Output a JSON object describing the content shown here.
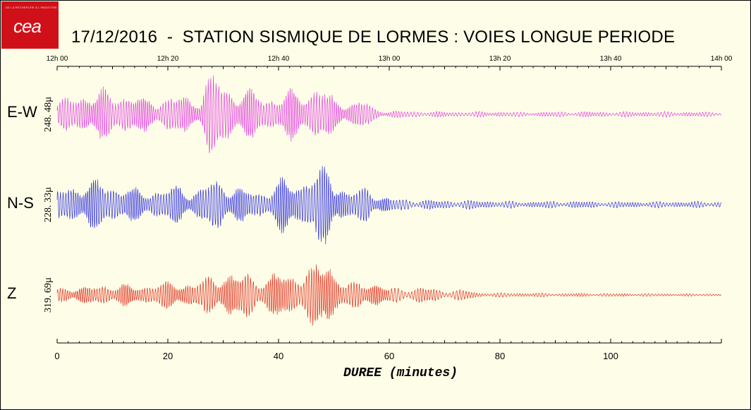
{
  "logo": {
    "text": "cea",
    "tagline": "DE LA RECHERCHE À L'INDUSTRIE"
  },
  "title": "17/12/2016  -  STATION SISMIQUE DE LORMES : VOIES LONGUE PERIODE",
  "colors": {
    "background": "#fefee8",
    "logo_red": "#d01018",
    "ew": "#e040e0",
    "ns": "#3030e0",
    "z": "#e03020"
  },
  "chart_data": {
    "type": "line",
    "top_axis": {
      "ticks": [
        "12h 00",
        "12h 20",
        "12h 40",
        "13h 00",
        "13h 20",
        "13h 40",
        "14h 00"
      ],
      "tick_minutes": [
        0,
        20,
        40,
        60,
        80,
        100,
        120
      ]
    },
    "bottom_axis": {
      "ticks": [
        "0",
        "20",
        "40",
        "60",
        "80",
        "100"
      ],
      "tick_values": [
        0,
        20,
        40,
        60,
        80,
        100
      ],
      "xlim": [
        0,
        120
      ]
    },
    "xlabel": "DUREE (minutes)",
    "series": [
      {
        "name": "E-W",
        "scale": "248. 48µ",
        "color": "#e040e0",
        "envelope": {
          "minutes": [
            0,
            2,
            4,
            6,
            8,
            10,
            12,
            14,
            16,
            18,
            20,
            22,
            24,
            26,
            27,
            28,
            29,
            30,
            32,
            34,
            36,
            38,
            40,
            42,
            44,
            46,
            47,
            48,
            50,
            52,
            54,
            55,
            56,
            57,
            58,
            60,
            65,
            70,
            75,
            80,
            85,
            90,
            100,
            110,
            120
          ],
          "amplitude": [
            0.25,
            0.4,
            0.45,
            0.5,
            0.55,
            0.5,
            0.5,
            0.45,
            0.35,
            0.35,
            0.4,
            0.45,
            0.35,
            0.45,
            0.8,
            1.0,
            0.95,
            0.7,
            0.6,
            0.6,
            0.5,
            0.4,
            0.45,
            0.55,
            0.5,
            0.55,
            0.75,
            0.65,
            0.35,
            0.3,
            0.3,
            0.35,
            0.3,
            0.15,
            0.1,
            0.08,
            0.07,
            0.06,
            0.06,
            0.06,
            0.05,
            0.06,
            0.06,
            0.06,
            0.05
          ]
        }
      },
      {
        "name": "N-S",
        "scale": "228. 33µ",
        "color": "#3030e0",
        "envelope": {
          "minutes": [
            0,
            2,
            4,
            6,
            8,
            10,
            12,
            14,
            16,
            18,
            20,
            22,
            24,
            26,
            28,
            30,
            32,
            34,
            36,
            38,
            40,
            42,
            44,
            45,
            46,
            48,
            49,
            50,
            52,
            54,
            56,
            58,
            60,
            64,
            68,
            72,
            76,
            80,
            85,
            90,
            100,
            110,
            120
          ],
          "amplitude": [
            0.35,
            0.4,
            0.5,
            0.55,
            0.55,
            0.45,
            0.45,
            0.35,
            0.3,
            0.35,
            0.4,
            0.45,
            0.3,
            0.4,
            0.6,
            0.55,
            0.45,
            0.35,
            0.3,
            0.35,
            0.6,
            0.55,
            0.5,
            0.75,
            0.85,
            0.8,
            0.9,
            0.6,
            0.35,
            0.35,
            0.4,
            0.25,
            0.15,
            0.12,
            0.1,
            0.1,
            0.1,
            0.08,
            0.07,
            0.08,
            0.07,
            0.07,
            0.07
          ]
        }
      },
      {
        "name": "Z",
        "scale": "319. 69µ",
        "color": "#e03020",
        "envelope": {
          "minutes": [
            0,
            2,
            4,
            6,
            8,
            10,
            12,
            14,
            16,
            18,
            20,
            22,
            24,
            26,
            28,
            30,
            32,
            34,
            36,
            38,
            40,
            42,
            44,
            45,
            46,
            48,
            49,
            50,
            52,
            54,
            56,
            58,
            60,
            62,
            64,
            66,
            68,
            70,
            72,
            74,
            75,
            76,
            80,
            85,
            90,
            100,
            110,
            120
          ],
          "amplitude": [
            0.15,
            0.2,
            0.2,
            0.2,
            0.25,
            0.25,
            0.25,
            0.2,
            0.25,
            0.3,
            0.3,
            0.3,
            0.3,
            0.35,
            0.45,
            0.55,
            0.5,
            0.55,
            0.45,
            0.4,
            0.55,
            0.5,
            0.55,
            0.7,
            0.6,
            0.8,
            1.0,
            0.55,
            0.3,
            0.3,
            0.35,
            0.3,
            0.15,
            0.2,
            0.15,
            0.2,
            0.15,
            0.12,
            0.12,
            0.12,
            0.1,
            0.05,
            0.05,
            0.05,
            0.04,
            0.04,
            0.03,
            0.03
          ]
        }
      }
    ],
    "grid": false
  }
}
